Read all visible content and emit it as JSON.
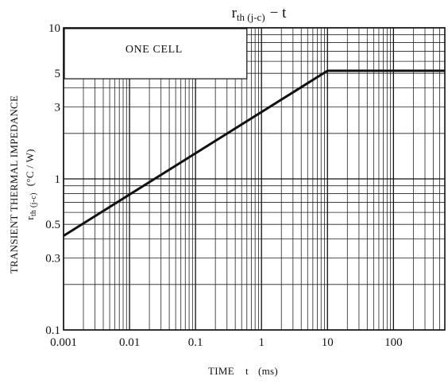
{
  "chart_data": {
    "type": "line",
    "title": {
      "main": "r",
      "sub": "th (j-c)",
      "suffix": "−  t"
    },
    "xlabel": {
      "prefix": "TIME",
      "var": "t",
      "unit": "(ms)"
    },
    "ylabel": {
      "line1": "TRANSIENT THERMAL IMPEDANCE",
      "line2_main": "r",
      "line2_sub": "th (j-c)",
      "line2_unit": "(°C / W)"
    },
    "annotation": "ONE CELL",
    "x_scale": "log",
    "y_scale": "log",
    "xlim": [
      0.001,
      600
    ],
    "ylim": [
      0.1,
      10
    ],
    "x_ticks": [
      0.001,
      0.01,
      0.1,
      1,
      10,
      100
    ],
    "x_tick_labels": [
      "0.001",
      "0.01",
      "0.1",
      "1",
      "10",
      "100"
    ],
    "y_ticks": [
      0.1,
      0.3,
      0.5,
      1,
      3,
      5,
      10
    ],
    "y_tick_labels": [
      "0.1",
      "0.3",
      "0.5",
      "1",
      "3",
      "5",
      "10"
    ],
    "grid": true,
    "series": [
      {
        "x": [
          0.001,
          10,
          600
        ],
        "y": [
          0.42,
          5.2,
          5.2
        ]
      }
    ]
  }
}
